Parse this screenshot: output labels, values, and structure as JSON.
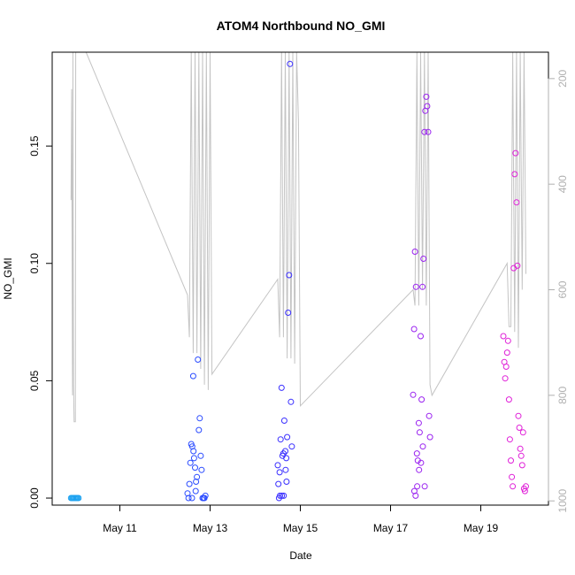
{
  "chart_data": {
    "type": "scatter",
    "title": "ATOM4 Northbound NO_GMI",
    "xlabel": "Date",
    "ylabel": "NO_GMI",
    "xlim": [
      "2018-05-09T12:00",
      "2018-05-20T12:00"
    ],
    "ylim": [
      -0.003,
      0.19
    ],
    "x_ticks": [
      {
        "label": "May 11",
        "date": "2018-05-11"
      },
      {
        "label": "May 13",
        "date": "2018-05-13"
      },
      {
        "label": "May 15",
        "date": "2018-05-15"
      },
      {
        "label": "May 17",
        "date": "2018-05-17"
      },
      {
        "label": "May 19",
        "date": "2018-05-19"
      }
    ],
    "y_ticks": [
      {
        "label": "0.00",
        "value": 0.0
      },
      {
        "label": "0.05",
        "value": 0.05
      },
      {
        "label": "0.10",
        "value": 0.1
      },
      {
        "label": "0.15",
        "value": 0.15
      }
    ],
    "right_axis": {
      "inverted": true,
      "ylim": [
        1008,
        150
      ],
      "ticks": [
        {
          "label": "200",
          "value": 200
        },
        {
          "label": "400",
          "value": 400
        },
        {
          "label": "600",
          "value": 600
        },
        {
          "label": "800",
          "value": 800
        },
        {
          "label": "1000",
          "value": 1000
        }
      ],
      "color": "#b0b0b0"
    },
    "grid": false,
    "colors": {
      "line": "#c4c4c4",
      "flight1": "#1fa3f0",
      "flight2": "#2b4cff",
      "flight3": "#3a2fff",
      "flight4": "#9a22f0",
      "flight5": "#e020d8"
    },
    "profile_line": [
      [
        "2018-05-09T22:00",
        430
      ],
      [
        "2018-05-09T22:20",
        220
      ],
      [
        "2018-05-09T22:40",
        650
      ],
      [
        "2018-05-09T22:50",
        800
      ],
      [
        "2018-05-09T23:00",
        150
      ],
      [
        "2018-05-09T23:20",
        780
      ],
      [
        "2018-05-09T23:40",
        850
      ],
      [
        "2018-05-10T00:20",
        850
      ],
      [
        "2018-05-10T00:30",
        150
      ],
      [
        "2018-05-10T06:00",
        150
      ],
      [
        "2018-05-12T12:00",
        610
      ],
      [
        "2018-05-12T13:00",
        690
      ],
      [
        "2018-05-12T14:00",
        150
      ],
      [
        "2018-05-12T15:00",
        720
      ],
      [
        "2018-05-12T16:00",
        150
      ],
      [
        "2018-05-12T17:00",
        720
      ],
      [
        "2018-05-12T18:00",
        150
      ],
      [
        "2018-05-12T19:00",
        750
      ],
      [
        "2018-05-12T20:00",
        150
      ],
      [
        "2018-05-12T21:00",
        780
      ],
      [
        "2018-05-12T22:00",
        150
      ],
      [
        "2018-05-12T23:00",
        790
      ],
      [
        "2018-05-13T00:00",
        150
      ],
      [
        "2018-05-13T01:00",
        760
      ],
      [
        "2018-05-14T12:00",
        580
      ],
      [
        "2018-05-14T13:00",
        690
      ],
      [
        "2018-05-14T14:00",
        150
      ],
      [
        "2018-05-14T15:00",
        690
      ],
      [
        "2018-05-14T16:00",
        150
      ],
      [
        "2018-05-14T17:00",
        730
      ],
      [
        "2018-05-14T18:00",
        150
      ],
      [
        "2018-05-14T19:00",
        730
      ],
      [
        "2018-05-14T20:00",
        150
      ],
      [
        "2018-05-14T21:00",
        740
      ],
      [
        "2018-05-14T22:00",
        150
      ],
      [
        "2018-05-14T23:00",
        280
      ],
      [
        "2018-05-15T00:00",
        820
      ],
      [
        "2018-05-17T12:00",
        600
      ],
      [
        "2018-05-17T13:00",
        630
      ],
      [
        "2018-05-17T14:00",
        150
      ],
      [
        "2018-05-17T15:00",
        630
      ],
      [
        "2018-05-17T16:00",
        150
      ],
      [
        "2018-05-17T17:00",
        600
      ],
      [
        "2018-05-17T18:00",
        150
      ],
      [
        "2018-05-17T19:00",
        630
      ],
      [
        "2018-05-17T20:00",
        150
      ],
      [
        "2018-05-17T21:00",
        780
      ],
      [
        "2018-05-17T22:00",
        800
      ],
      [
        "2018-05-19T14:00",
        550
      ],
      [
        "2018-05-19T15:00",
        670
      ],
      [
        "2018-05-19T16:00",
        670
      ],
      [
        "2018-05-19T17:00",
        150
      ],
      [
        "2018-05-19T18:00",
        680
      ],
      [
        "2018-05-19T19:00",
        150
      ],
      [
        "2018-05-19T20:00",
        710
      ],
      [
        "2018-05-19T21:00",
        150
      ],
      [
        "2018-05-19T22:00",
        600
      ],
      [
        "2018-05-19T23:00",
        150
      ],
      [
        "2018-05-20T00:00",
        570
      ]
    ],
    "series": [
      {
        "color_key": "flight1",
        "points": [
          [
            "2018-05-09T22:00",
            0.0
          ],
          [
            "2018-05-09T22:30",
            0.0
          ],
          [
            "2018-05-09T23:00",
            0.0
          ],
          [
            "2018-05-09T23:30",
            0.0
          ],
          [
            "2018-05-10T00:00",
            0.0
          ],
          [
            "2018-05-10T00:30",
            0.0
          ],
          [
            "2018-05-10T01:00",
            0.0
          ],
          [
            "2018-05-10T01:30",
            0.0
          ],
          [
            "2018-05-10T02:00",
            0.0
          ]
        ]
      },
      {
        "color_key": "flight2",
        "points": [
          [
            "2018-05-12T12:00",
            0.002
          ],
          [
            "2018-05-12T12:30",
            0.0
          ],
          [
            "2018-05-12T13:00",
            0.006
          ],
          [
            "2018-05-12T13:30",
            0.015
          ],
          [
            "2018-05-12T14:00",
            0.023
          ],
          [
            "2018-05-12T14:30",
            0.022
          ],
          [
            "2018-05-12T15:00",
            0.052
          ],
          [
            "2018-05-12T15:30",
            0.017
          ],
          [
            "2018-05-12T16:00",
            0.013
          ],
          [
            "2018-05-12T16:30",
            0.007
          ],
          [
            "2018-05-12T17:00",
            0.009
          ],
          [
            "2018-05-12T17:30",
            0.059
          ],
          [
            "2018-05-12T18:00",
            0.029
          ],
          [
            "2018-05-12T18:30",
            0.034
          ],
          [
            "2018-05-12T19:00",
            0.018
          ],
          [
            "2018-05-12T19:30",
            0.012
          ],
          [
            "2018-05-12T20:00",
            0.0
          ],
          [
            "2018-05-12T20:30",
            0.0
          ],
          [
            "2018-05-12T21:00",
            0.0
          ],
          [
            "2018-05-12T21:30",
            0.001
          ],
          [
            "2018-05-12T14:20",
            0.0
          ],
          [
            "2018-05-12T15:10",
            0.02
          ],
          [
            "2018-05-12T16:20",
            0.003
          ]
        ]
      },
      {
        "color_key": "flight3",
        "points": [
          [
            "2018-05-14T12:00",
            0.014
          ],
          [
            "2018-05-14T12:40",
            0.0
          ],
          [
            "2018-05-14T13:00",
            0.011
          ],
          [
            "2018-05-14T13:30",
            0.025
          ],
          [
            "2018-05-14T14:00",
            0.047
          ],
          [
            "2018-05-14T14:30",
            0.018
          ],
          [
            "2018-05-14T15:00",
            0.019
          ],
          [
            "2018-05-14T15:30",
            0.033
          ],
          [
            "2018-05-14T16:00",
            0.02
          ],
          [
            "2018-05-14T16:30",
            0.017
          ],
          [
            "2018-05-14T17:00",
            0.026
          ],
          [
            "2018-05-14T17:30",
            0.079
          ],
          [
            "2018-05-14T18:00",
            0.095
          ],
          [
            "2018-05-14T18:30",
            0.185
          ],
          [
            "2018-05-14T19:00",
            0.041
          ],
          [
            "2018-05-14T19:30",
            0.022
          ],
          [
            "2018-05-14T13:10",
            0.001
          ],
          [
            "2018-05-14T14:10",
            0.001
          ],
          [
            "2018-05-14T15:10",
            0.001
          ],
          [
            "2018-05-14T16:10",
            0.012
          ],
          [
            "2018-05-14T16:40",
            0.007
          ],
          [
            "2018-05-14T12:20",
            0.006
          ]
        ]
      },
      {
        "color_key": "flight4",
        "points": [
          [
            "2018-05-17T12:00",
            0.044
          ],
          [
            "2018-05-17T12:30",
            0.072
          ],
          [
            "2018-05-17T13:00",
            0.105
          ],
          [
            "2018-05-17T13:30",
            0.09
          ],
          [
            "2018-05-17T14:00",
            0.019
          ],
          [
            "2018-05-17T14:30",
            0.016
          ],
          [
            "2018-05-17T15:00",
            0.032
          ],
          [
            "2018-05-17T15:30",
            0.028
          ],
          [
            "2018-05-17T16:00",
            0.069
          ],
          [
            "2018-05-17T16:30",
            0.042
          ],
          [
            "2018-05-17T17:00",
            0.09
          ],
          [
            "2018-05-17T17:30",
            0.102
          ],
          [
            "2018-05-17T18:00",
            0.156
          ],
          [
            "2018-05-17T18:30",
            0.165
          ],
          [
            "2018-05-17T19:00",
            0.171
          ],
          [
            "2018-05-17T19:30",
            0.167
          ],
          [
            "2018-05-17T20:00",
            0.156
          ],
          [
            "2018-05-17T20:30",
            0.035
          ],
          [
            "2018-05-17T21:00",
            0.026
          ],
          [
            "2018-05-17T12:40",
            0.003
          ],
          [
            "2018-05-17T13:20",
            0.001
          ],
          [
            "2018-05-17T14:10",
            0.005
          ],
          [
            "2018-05-17T15:10",
            0.012
          ],
          [
            "2018-05-17T16:10",
            0.015
          ],
          [
            "2018-05-17T17:10",
            0.022
          ],
          [
            "2018-05-17T18:10",
            0.005
          ]
        ]
      },
      {
        "color_key": "flight5",
        "points": [
          [
            "2018-05-19T12:00",
            0.069
          ],
          [
            "2018-05-19T12:30",
            0.058
          ],
          [
            "2018-05-19T13:00",
            0.051
          ],
          [
            "2018-05-19T13:30",
            0.056
          ],
          [
            "2018-05-19T14:00",
            0.062
          ],
          [
            "2018-05-19T14:30",
            0.067
          ],
          [
            "2018-05-19T15:00",
            0.042
          ],
          [
            "2018-05-19T15:30",
            0.025
          ],
          [
            "2018-05-19T16:00",
            0.016
          ],
          [
            "2018-05-19T16:30",
            0.009
          ],
          [
            "2018-05-19T17:00",
            0.005
          ],
          [
            "2018-05-19T17:30",
            0.098
          ],
          [
            "2018-05-19T18:00",
            0.138
          ],
          [
            "2018-05-19T18:30",
            0.147
          ],
          [
            "2018-05-19T19:00",
            0.126
          ],
          [
            "2018-05-19T19:30",
            0.099
          ],
          [
            "2018-05-19T20:00",
            0.035
          ],
          [
            "2018-05-19T20:30",
            0.03
          ],
          [
            "2018-05-19T21:00",
            0.021
          ],
          [
            "2018-05-19T21:30",
            0.018
          ],
          [
            "2018-05-19T22:00",
            0.014
          ],
          [
            "2018-05-19T22:30",
            0.028
          ],
          [
            "2018-05-19T23:00",
            0.004
          ],
          [
            "2018-05-19T23:30",
            0.003
          ],
          [
            "2018-05-20T00:00",
            0.005
          ]
        ]
      }
    ]
  }
}
